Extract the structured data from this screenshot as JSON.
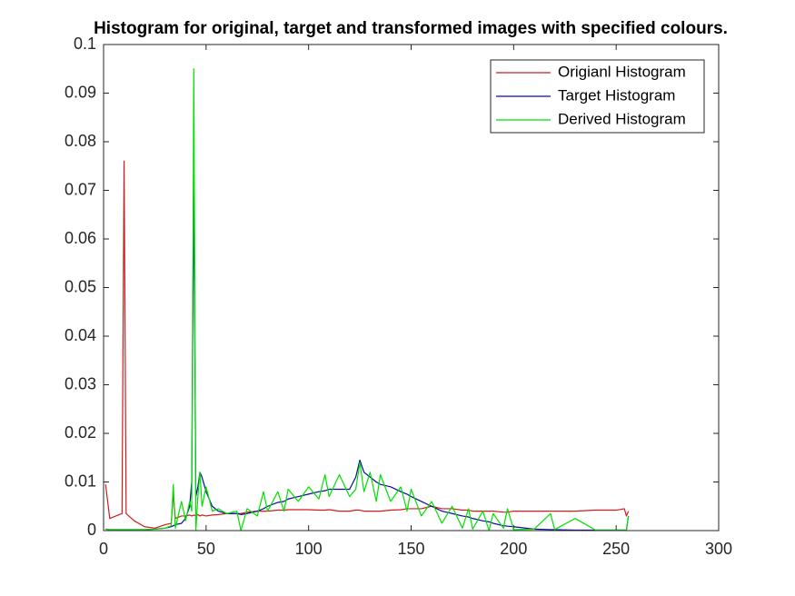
{
  "chart_data": {
    "type": "line",
    "title": "Histogram for original, target and transformed images with specified colours.",
    "x": [
      1,
      3,
      6,
      9,
      10,
      11,
      15,
      20,
      25,
      30,
      33,
      34,
      35,
      38,
      40,
      42,
      43,
      44,
      45,
      46,
      47,
      48,
      50,
      53,
      56,
      60,
      65,
      67,
      70,
      75,
      78,
      80,
      85,
      88,
      90,
      95,
      100,
      105,
      108,
      110,
      115,
      120,
      123,
      125,
      127,
      130,
      133,
      135,
      140,
      145,
      148,
      150,
      155,
      160,
      165,
      170,
      175,
      178,
      180,
      185,
      188,
      190,
      195,
      197,
      200,
      210,
      218,
      220,
      230,
      240,
      250,
      254,
      255,
      256
    ],
    "series": [
      {
        "name": "Origianl Histogram",
        "color": "#d01c1c",
        "values": [
          0.0095,
          0.0025,
          0.003,
          0.0035,
          0.076,
          0.0035,
          0.002,
          0.0008,
          0.0005,
          0.0012,
          0.0015,
          0.0075,
          0.0025,
          0.003,
          0.003,
          0.0032,
          0.003,
          0.0032,
          0.003,
          0.0033,
          0.003,
          0.0032,
          0.003,
          0.0032,
          0.0033,
          0.0035,
          0.0035,
          0.0035,
          0.0038,
          0.004,
          0.004,
          0.004,
          0.0042,
          0.0042,
          0.0043,
          0.0043,
          0.0043,
          0.0042,
          0.0042,
          0.0043,
          0.004,
          0.004,
          0.0042,
          0.0042,
          0.004,
          0.004,
          0.004,
          0.004,
          0.0042,
          0.0043,
          0.0045,
          0.0045,
          0.0045,
          0.005,
          0.0045,
          0.0045,
          0.0042,
          0.0042,
          0.004,
          0.004,
          0.004,
          0.004,
          0.0038,
          0.0038,
          0.004,
          0.004,
          0.004,
          0.004,
          0.004,
          0.0042,
          0.0042,
          0.0045,
          0.003,
          0.004
        ]
      },
      {
        "name": "Target Histogram",
        "color": "#0a0aa0",
        "values": [
          0.0003,
          0.0002,
          0.0002,
          0.0002,
          0.0002,
          0.0002,
          0.0002,
          0.0002,
          0.0003,
          0.0005,
          0.0008,
          0.001,
          0.0012,
          0.0015,
          0.0025,
          0.005,
          0.01,
          0.072,
          0.007,
          0.009,
          0.012,
          0.011,
          0.008,
          0.005,
          0.004,
          0.0035,
          0.0035,
          0.0033,
          0.0035,
          0.004,
          0.0045,
          0.005,
          0.0058,
          0.006,
          0.0065,
          0.007,
          0.0075,
          0.008,
          0.0082,
          0.0085,
          0.0085,
          0.0085,
          0.011,
          0.0145,
          0.012,
          0.011,
          0.01,
          0.0095,
          0.009,
          0.008,
          0.0075,
          0.007,
          0.006,
          0.005,
          0.004,
          0.0035,
          0.003,
          0.0028,
          0.0025,
          0.002,
          0.0018,
          0.0015,
          0.001,
          0.0009,
          0.0008,
          0.0003,
          0.0002,
          0.0002,
          0.0001,
          0.0001,
          0.0001,
          0.0001,
          0.0001,
          0.003
        ]
      },
      {
        "name": "Derived Histogram",
        "color": "#00e000",
        "values": [
          0.0003,
          0.0002,
          0.0002,
          0.0002,
          0.0002,
          0.0002,
          0.0002,
          0.0002,
          0.0003,
          0.0005,
          0.001,
          0.0095,
          0.0005,
          0.006,
          0.002,
          0.006,
          0.004,
          0.095,
          0,
          0.007,
          0.012,
          0.005,
          0.009,
          0.004,
          0.0045,
          0.0035,
          0.004,
          0,
          0.0045,
          0.003,
          0.008,
          0.004,
          0.008,
          0.004,
          0.0085,
          0.006,
          0.009,
          0.0065,
          0.0115,
          0.007,
          0.0115,
          0.007,
          0.0085,
          0.014,
          0.008,
          0.012,
          0.006,
          0.0115,
          0.006,
          0.009,
          0.004,
          0.0085,
          0.003,
          0.006,
          0.0015,
          0.005,
          0.0005,
          0.0045,
          0.0003,
          0.004,
          0,
          0.0035,
          0.0005,
          0.0045,
          0.0002,
          0.0003,
          0.0035,
          0.0002,
          0.0025,
          0.0001,
          0.0001,
          0.0001,
          0.0001,
          0.003
        ]
      }
    ],
    "xlim": [
      0,
      300
    ],
    "xticks": [
      0,
      50,
      100,
      150,
      200,
      250,
      300
    ],
    "ylim": [
      0,
      0.1
    ],
    "yticks": [
      0,
      0.01,
      0.02,
      0.03,
      0.04,
      0.05,
      0.06,
      0.07,
      0.08,
      0.09,
      0.1
    ],
    "legend": "upper right",
    "grid": false
  }
}
